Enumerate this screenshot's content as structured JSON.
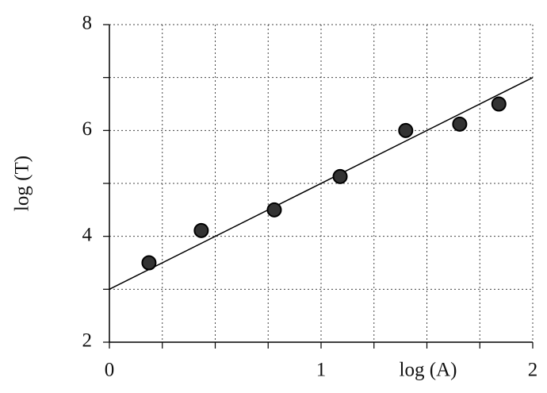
{
  "chart_data": {
    "type": "scatter",
    "x_label": "log (A)",
    "y_label": "log (T)",
    "x": [
      0.187,
      0.434,
      0.779,
      1.09,
      1.4,
      1.655,
      1.84
    ],
    "values": [
      3.5,
      4.11,
      4.5,
      5.13,
      6.0,
      6.12,
      6.5
    ],
    "color": "#333333",
    "fit_line": {
      "x": [
        0,
        2
      ],
      "y": [
        3,
        7
      ],
      "color": "#000000"
    },
    "xlim": [
      0,
      2
    ],
    "ylim": [
      2,
      8
    ],
    "xticks": [
      0,
      1,
      2
    ],
    "yticks": [
      2,
      4,
      6,
      8
    ],
    "xminorticks": [
      0.25,
      0.5,
      0.75,
      1.25,
      1.5,
      1.75
    ],
    "yminorticks": [
      3,
      5,
      7
    ],
    "grid": true
  }
}
